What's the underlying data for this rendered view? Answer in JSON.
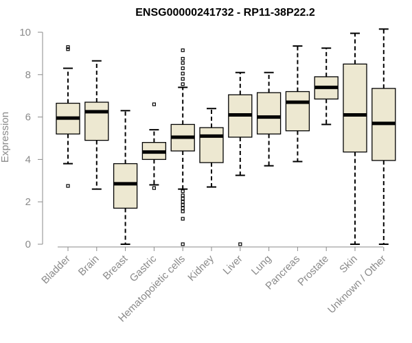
{
  "chart_data": {
    "type": "boxplot",
    "title": "ENSG00000241732 - RP11-38P22.2",
    "xlabel": "",
    "ylabel": "Expression",
    "ylim": [
      0,
      10
    ],
    "yticks": [
      0,
      2,
      4,
      6,
      8,
      10
    ],
    "box_color": "#ede8d1",
    "categories": [
      "Bladder",
      "Brain",
      "Breast",
      "Gastric",
      "Hematopoietic cells",
      "Kidney",
      "Liver",
      "Lung",
      "Pancreas",
      "Prostate",
      "Skin",
      "Unknown / Other"
    ],
    "boxes": [
      {
        "name": "Bladder",
        "min": 3.8,
        "q1": 5.2,
        "median": 5.95,
        "q3": 6.65,
        "max": 8.3,
        "outliers": [
          9.2,
          9.3,
          2.75
        ]
      },
      {
        "name": "Brain",
        "min": 2.6,
        "q1": 4.9,
        "median": 6.25,
        "q3": 6.7,
        "max": 8.65,
        "outliers": []
      },
      {
        "name": "Breast",
        "min": 0.0,
        "q1": 1.7,
        "median": 2.85,
        "q3": 3.8,
        "max": 6.3,
        "outliers": []
      },
      {
        "name": "Gastric",
        "min": 2.8,
        "q1": 4.0,
        "median": 4.35,
        "q3": 4.8,
        "max": 5.4,
        "outliers": [
          6.6,
          2.65
        ]
      },
      {
        "name": "Hematopoietic cells",
        "min": 2.6,
        "q1": 4.4,
        "median": 5.05,
        "q3": 5.65,
        "max": 7.4,
        "outliers": [
          9.15,
          8.75,
          8.55,
          8.3,
          8.05,
          7.8,
          7.55,
          2.5,
          2.3,
          2.15,
          2.0,
          1.85,
          1.7,
          1.55,
          1.2,
          0.0
        ]
      },
      {
        "name": "Kidney",
        "min": 2.7,
        "q1": 3.85,
        "median": 5.1,
        "q3": 5.5,
        "max": 6.4,
        "outliers": []
      },
      {
        "name": "Liver",
        "min": 3.25,
        "q1": 5.05,
        "median": 6.1,
        "q3": 7.05,
        "max": 8.1,
        "outliers": [
          0.0
        ]
      },
      {
        "name": "Lung",
        "min": 3.7,
        "q1": 5.2,
        "median": 6.0,
        "q3": 7.15,
        "max": 8.1,
        "outliers": []
      },
      {
        "name": "Pancreas",
        "min": 3.9,
        "q1": 5.35,
        "median": 6.7,
        "q3": 7.2,
        "max": 9.35,
        "outliers": []
      },
      {
        "name": "Prostate",
        "min": 5.65,
        "q1": 6.85,
        "median": 7.4,
        "q3": 7.9,
        "max": 9.25,
        "outliers": []
      },
      {
        "name": "Skin",
        "min": 0.0,
        "q1": 4.35,
        "median": 6.1,
        "q3": 8.5,
        "max": 9.95,
        "outliers": []
      },
      {
        "name": "Unknown / Other",
        "min": 0.0,
        "q1": 3.95,
        "median": 5.7,
        "q3": 7.35,
        "max": 10.15,
        "outliers": []
      }
    ]
  }
}
